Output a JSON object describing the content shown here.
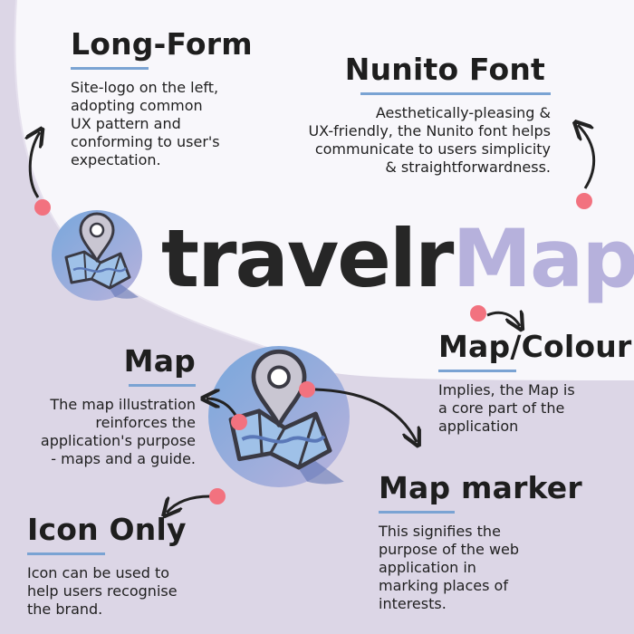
{
  "logo": {
    "wordmark_part1": "travelr",
    "wordmark_part2": "Map"
  },
  "long_form": {
    "title": "Long-Form",
    "lines": [
      "Site-logo on the left,",
      "adopting common",
      "UX pattern and",
      "conforming to user's",
      "expectation."
    ]
  },
  "nunito_font": {
    "title": "Nunito Font",
    "lines": [
      "Aesthetically-pleasing &",
      "UX-friendly, the Nunito font helps",
      "communicate to users simplicity",
      "& straightforwardness."
    ]
  },
  "map": {
    "title": "Map",
    "lines": [
      "The map illustration",
      "reinforces the",
      "application's purpose",
      "- maps and a guide."
    ]
  },
  "map_colour": {
    "title": "Map/Colour",
    "lines": [
      "Implies, the Map is",
      "a core part of the",
      "application"
    ]
  },
  "map_marker": {
    "title": "Map marker",
    "lines": [
      "This signifies the",
      "purpose of the web",
      "application in",
      "marking places of",
      "interests."
    ]
  },
  "icon_only": {
    "title": "Icon Only",
    "lines": [
      "Icon can be used to",
      "help users recognise",
      "the brand."
    ]
  },
  "colors": {
    "accent_rule": "#7aa3d3",
    "dot": "#f2727f",
    "wordmark_dark": "#262626",
    "wordmark_light": "#b6b1dc",
    "background_wave": "#dcd6e6"
  }
}
